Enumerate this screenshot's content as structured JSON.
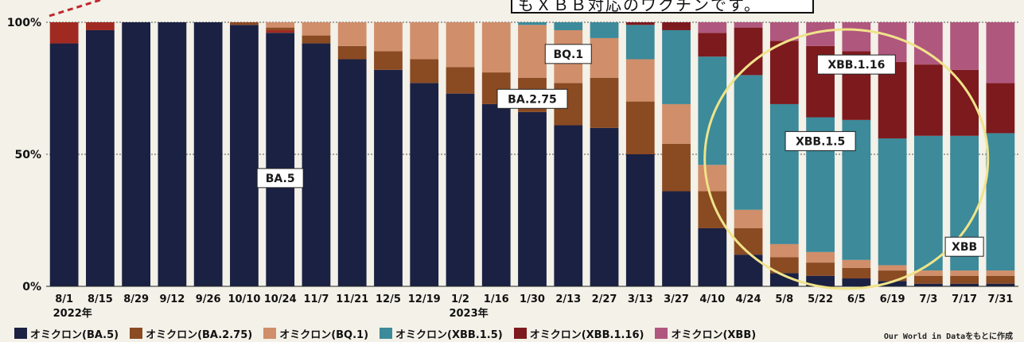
{
  "note": {
    "text": "もＸＢＢ対応のワクチンです。"
  },
  "chart_data": {
    "type": "bar",
    "stacked": true,
    "ylim": [
      0,
      100
    ],
    "yticks": [
      "0%",
      "50%",
      "100%"
    ],
    "categories": [
      "8/1",
      "8/15",
      "8/29",
      "9/12",
      "9/26",
      "10/10",
      "10/24",
      "11/7",
      "11/21",
      "12/5",
      "12/19",
      "1/2",
      "1/16",
      "1/30",
      "2/13",
      "2/27",
      "3/13",
      "3/27",
      "4/10",
      "4/24",
      "5/8",
      "5/22",
      "6/5",
      "6/19",
      "7/3",
      "7/17",
      "7/31"
    ],
    "year_labels": [
      {
        "text": "2022年",
        "category": "8/1"
      },
      {
        "text": "2023年",
        "category": "1/2"
      }
    ],
    "series": [
      {
        "name": "オミクロン(BA.5)",
        "color": "#1b2143",
        "values": [
          92,
          97,
          100,
          100,
          100,
          99,
          96,
          92,
          86,
          82,
          77,
          73,
          69,
          66,
          61,
          60,
          50,
          36,
          22,
          12,
          5,
          4,
          3,
          2,
          1,
          1,
          1
        ]
      },
      {
        "name": "オミクロン(BA.2.75)",
        "color": "#8a4a22",
        "values": [
          0,
          0,
          0,
          0,
          0,
          1,
          1,
          3,
          5,
          7,
          9,
          10,
          12,
          13,
          16,
          19,
          20,
          18,
          14,
          10,
          6,
          5,
          4,
          4,
          3,
          3,
          3
        ]
      },
      {
        "name": "オミクロン(BQ.1)",
        "color": "#d08e6a",
        "values": [
          0,
          0,
          0,
          0,
          0,
          0,
          2,
          5,
          9,
          11,
          14,
          17,
          19,
          20,
          20,
          15,
          16,
          15,
          10,
          7,
          5,
          4,
          3,
          2,
          2,
          2,
          2
        ]
      },
      {
        "name": "オミクロン(XBB.1.5)",
        "color": "#3c8a9a",
        "values": [
          0,
          0,
          0,
          0,
          0,
          0,
          0,
          0,
          0,
          0,
          0,
          0,
          0,
          1,
          3,
          6,
          13,
          28,
          41,
          51,
          53,
          51,
          53,
          48,
          51,
          51,
          52
        ]
      },
      {
        "name": "オミクロン(XBB.1.16)",
        "color": "#7d1a1e",
        "values": [
          0,
          0,
          0,
          0,
          0,
          0,
          0,
          0,
          0,
          0,
          0,
          0,
          0,
          0,
          0,
          0,
          1,
          3,
          9,
          18,
          24,
          27,
          26,
          29,
          27,
          25,
          19
        ]
      },
      {
        "name": "オミクロン(XBB)",
        "color": "#b0577e",
        "values": [
          0,
          0,
          0,
          0,
          0,
          0,
          0,
          0,
          0,
          0,
          0,
          0,
          0,
          0,
          0,
          0,
          0,
          0,
          4,
          2,
          7,
          9,
          11,
          15,
          16,
          18,
          23
        ]
      }
    ],
    "other_values": [
      8,
      3,
      0,
      0,
      0,
      0,
      1,
      0,
      0,
      0,
      0,
      0,
      0,
      0,
      0,
      0,
      0,
      0,
      0,
      0,
      0,
      0,
      0,
      0,
      0,
      0,
      0
    ],
    "other_color": "#a02a22",
    "annotations": [
      {
        "text": "BA.5",
        "category": "10/24",
        "y": 41
      },
      {
        "text": "BA.2.75",
        "category": "1/30",
        "y": 71
      },
      {
        "text": "BQ.1",
        "category": "2/13",
        "y": 88
      },
      {
        "text": "XBB.1.5",
        "category": "5/22",
        "y": 55
      },
      {
        "text": "XBB.1.16",
        "category": "6/5",
        "y": 84
      },
      {
        "text": "XBB",
        "category": "7/17",
        "y": 15
      }
    ]
  },
  "source": "Our World in Dataをもとに作成"
}
